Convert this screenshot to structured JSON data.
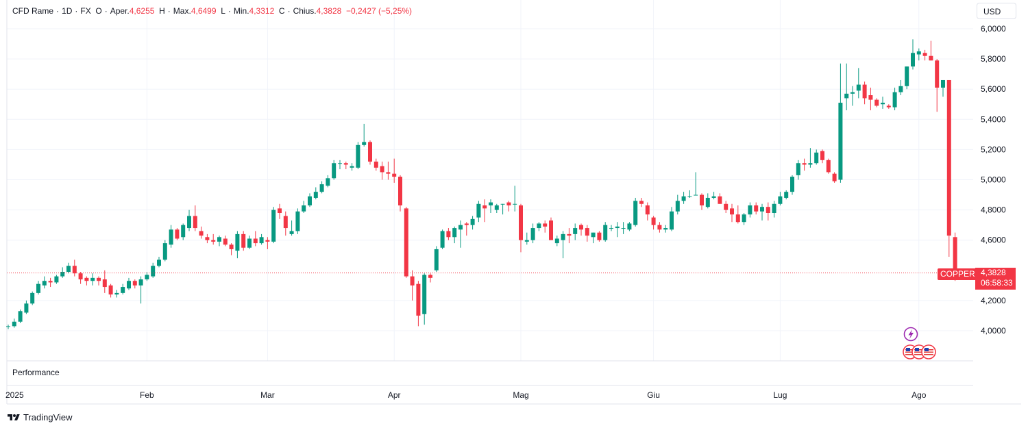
{
  "legend": {
    "symbol": "CFD Rame",
    "interval": "1D",
    "source": "FX",
    "open_label": "O",
    "open_word": "Aper.",
    "open": "4,6255",
    "high_label": "H",
    "high_word": "Max.",
    "high": "4,6499",
    "low_label": "L",
    "low_word": "Min.",
    "low": "4,3312",
    "close_label": "C",
    "close_word": "Chius.",
    "close": "4,3828",
    "change": "−0,2427 (−5,25%)"
  },
  "currency": "USD",
  "performance_label": "Performance",
  "brand": "TradingView",
  "last_price": {
    "symbol_tag": "COPPER",
    "value": "4,3828",
    "value_num": 4.3828,
    "countdown": "06:58:33"
  },
  "colors": {
    "up": "#089981",
    "down": "#f23645",
    "grid": "#f0f3fa",
    "axis_text": "#131722"
  },
  "icons": [
    "lightning-event-icon",
    "us-flag-icon",
    "us-flag-icon",
    "us-flag-icon"
  ],
  "chart_data": {
    "type": "candlestick",
    "title": "",
    "xlabel": "",
    "ylabel": "",
    "ylim": [
      3.8,
      6.05
    ],
    "y_ticks": [
      4.0,
      4.2,
      4.6,
      4.8,
      5.0,
      5.2,
      5.4,
      5.6,
      5.8,
      6.0
    ],
    "y_tick_labels": [
      "4,0000",
      "4,2000",
      "4,6000",
      "4,8000",
      "5,0000",
      "5,2000",
      "5,4000",
      "5,6000",
      "5,8000",
      "6,0000"
    ],
    "x_range": [
      0,
      153
    ],
    "x_ticks": [
      {
        "label": "2025",
        "pos": 0
      },
      {
        "label": "Feb",
        "pos": 23
      },
      {
        "label": "Mar",
        "pos": 43
      },
      {
        "label": "Apr",
        "pos": 64
      },
      {
        "label": "Mag",
        "pos": 85
      },
      {
        "label": "Giu",
        "pos": 107
      },
      {
        "label": "Lug",
        "pos": 128
      },
      {
        "label": "Ago",
        "pos": 151
      }
    ],
    "grid": true,
    "candles": [
      [
        4.03,
        4.04,
        4.01,
        4.03
      ],
      [
        4.03,
        4.08,
        4.02,
        4.06
      ],
      [
        4.06,
        4.14,
        4.05,
        4.13
      ],
      [
        4.12,
        4.2,
        4.11,
        4.18
      ],
      [
        4.18,
        4.26,
        4.17,
        4.25
      ],
      [
        4.25,
        4.33,
        4.24,
        4.31
      ],
      [
        4.3,
        4.36,
        4.28,
        4.33
      ],
      [
        4.33,
        4.35,
        4.29,
        4.32
      ],
      [
        4.32,
        4.37,
        4.31,
        4.36
      ],
      [
        4.36,
        4.42,
        4.35,
        4.39
      ],
      [
        4.39,
        4.45,
        4.38,
        4.43
      ],
      [
        4.43,
        4.47,
        4.36,
        4.38
      ],
      [
        4.38,
        4.39,
        4.31,
        4.34
      ],
      [
        4.35,
        4.36,
        4.3,
        4.33
      ],
      [
        4.33,
        4.38,
        4.3,
        4.35
      ],
      [
        4.35,
        4.36,
        4.3,
        4.33
      ],
      [
        4.34,
        4.4,
        4.25,
        4.29
      ],
      [
        4.3,
        4.31,
        4.22,
        4.24
      ],
      [
        4.24,
        4.27,
        4.22,
        4.25
      ],
      [
        4.25,
        4.31,
        4.24,
        4.29
      ],
      [
        4.28,
        4.35,
        4.27,
        4.33
      ],
      [
        4.33,
        4.34,
        4.28,
        4.3
      ],
      [
        4.3,
        4.36,
        4.18,
        4.34
      ],
      [
        4.34,
        4.39,
        4.33,
        4.37
      ],
      [
        4.36,
        4.45,
        4.35,
        4.43
      ],
      [
        4.43,
        4.49,
        4.42,
        4.47
      ],
      [
        4.47,
        4.6,
        4.46,
        4.58
      ],
      [
        4.57,
        4.7,
        4.55,
        4.67
      ],
      [
        4.67,
        4.68,
        4.6,
        4.61
      ],
      [
        4.62,
        4.71,
        4.6,
        4.7
      ],
      [
        4.68,
        4.8,
        4.66,
        4.76
      ],
      [
        4.76,
        4.83,
        4.66,
        4.68
      ],
      [
        4.66,
        4.69,
        4.61,
        4.63
      ],
      [
        4.62,
        4.64,
        4.58,
        4.6
      ],
      [
        4.6,
        4.64,
        4.57,
        4.59
      ],
      [
        4.59,
        4.63,
        4.56,
        4.62
      ],
      [
        4.61,
        4.63,
        4.56,
        4.57
      ],
      [
        4.57,
        4.58,
        4.5,
        4.54
      ],
      [
        4.53,
        4.66,
        4.48,
        4.64
      ],
      [
        4.64,
        4.66,
        4.53,
        4.55
      ],
      [
        4.55,
        4.63,
        4.54,
        4.61
      ],
      [
        4.61,
        4.66,
        4.56,
        4.58
      ],
      [
        4.58,
        4.64,
        4.57,
        4.62
      ],
      [
        4.6,
        4.62,
        4.54,
        4.59
      ],
      [
        4.59,
        4.82,
        4.58,
        4.8
      ],
      [
        4.81,
        4.84,
        4.74,
        4.78
      ],
      [
        4.76,
        4.79,
        4.63,
        4.68
      ],
      [
        4.64,
        4.73,
        4.63,
        4.66
      ],
      [
        4.66,
        4.81,
        4.64,
        4.79
      ],
      [
        4.79,
        4.86,
        4.78,
        4.83
      ],
      [
        4.83,
        4.91,
        4.82,
        4.89
      ],
      [
        4.88,
        4.95,
        4.87,
        4.92
      ],
      [
        4.92,
        4.99,
        4.91,
        4.97
      ],
      [
        4.96,
        5.03,
        4.95,
        5.01
      ],
      [
        5.01,
        5.13,
        5.0,
        5.11
      ],
      [
        5.11,
        5.13,
        5.07,
        5.11
      ],
      [
        5.11,
        5.12,
        5.07,
        5.1
      ],
      [
        5.08,
        5.11,
        5.06,
        5.09
      ],
      [
        5.08,
        5.25,
        5.07,
        5.23
      ],
      [
        5.23,
        5.37,
        5.22,
        5.25
      ],
      [
        5.25,
        5.26,
        5.1,
        5.12
      ],
      [
        5.12,
        5.14,
        5.06,
        5.08
      ],
      [
        5.09,
        5.12,
        5.0,
        5.05
      ],
      [
        5.05,
        5.12,
        5.0,
        5.04
      ],
      [
        5.04,
        5.14,
        4.98,
        5.02
      ],
      [
        5.02,
        5.03,
        4.79,
        4.83
      ],
      [
        4.81,
        4.82,
        4.35,
        4.36
      ],
      [
        4.36,
        4.4,
        4.2,
        4.3
      ],
      [
        4.31,
        4.33,
        4.03,
        4.1
      ],
      [
        4.11,
        4.38,
        4.04,
        4.37
      ],
      [
        4.37,
        4.38,
        4.32,
        4.35
      ],
      [
        4.4,
        4.56,
        4.39,
        4.54
      ],
      [
        4.55,
        4.67,
        4.54,
        4.66
      ],
      [
        4.66,
        4.68,
        4.6,
        4.62
      ],
      [
        4.62,
        4.69,
        4.58,
        4.68
      ],
      [
        4.67,
        4.73,
        4.55,
        4.7
      ],
      [
        4.71,
        4.72,
        4.63,
        4.7
      ],
      [
        4.7,
        4.76,
        4.67,
        4.74
      ],
      [
        4.75,
        4.86,
        4.72,
        4.84
      ],
      [
        4.83,
        4.87,
        4.72,
        4.81
      ],
      [
        4.83,
        4.87,
        4.78,
        4.85
      ],
      [
        4.8,
        4.84,
        4.78,
        4.83
      ],
      [
        4.84,
        4.84,
        4.77,
        4.84
      ],
      [
        4.85,
        4.86,
        4.79,
        4.83
      ],
      [
        4.84,
        4.96,
        4.79,
        4.84
      ],
      [
        4.83,
        4.84,
        4.52,
        4.6
      ],
      [
        4.59,
        4.65,
        4.57,
        4.6
      ],
      [
        4.6,
        4.71,
        4.58,
        4.68
      ],
      [
        4.68,
        4.72,
        4.66,
        4.71
      ],
      [
        4.71,
        4.73,
        4.65,
        4.69
      ],
      [
        4.73,
        4.75,
        4.6,
        4.6
      ],
      [
        4.58,
        4.63,
        4.56,
        4.61
      ],
      [
        4.6,
        4.66,
        4.48,
        4.64
      ],
      [
        4.64,
        4.68,
        4.58,
        4.63
      ],
      [
        4.64,
        4.71,
        4.6,
        4.68
      ],
      [
        4.7,
        4.71,
        4.63,
        4.67
      ],
      [
        4.68,
        4.7,
        4.59,
        4.63
      ],
      [
        4.62,
        4.65,
        4.58,
        4.65
      ],
      [
        4.65,
        4.66,
        4.59,
        4.6
      ],
      [
        4.6,
        4.72,
        4.59,
        4.7
      ],
      [
        4.68,
        4.7,
        4.66,
        4.68
      ],
      [
        4.68,
        4.72,
        4.62,
        4.69
      ],
      [
        4.68,
        4.72,
        4.64,
        4.68
      ],
      [
        4.67,
        4.72,
        4.66,
        4.71
      ],
      [
        4.7,
        4.88,
        4.69,
        4.86
      ],
      [
        4.86,
        4.88,
        4.82,
        4.84
      ],
      [
        4.83,
        4.85,
        4.73,
        4.77
      ],
      [
        4.75,
        4.76,
        4.67,
        4.7
      ],
      [
        4.7,
        4.72,
        4.65,
        4.67
      ],
      [
        4.67,
        4.7,
        4.65,
        4.68
      ],
      [
        4.67,
        4.82,
        4.66,
        4.79
      ],
      [
        4.79,
        4.9,
        4.77,
        4.86
      ],
      [
        4.86,
        4.92,
        4.84,
        4.89
      ],
      [
        4.89,
        4.93,
        4.88,
        4.89
      ],
      [
        4.9,
        5.05,
        4.9,
        4.9
      ],
      [
        4.9,
        4.91,
        4.8,
        4.83
      ],
      [
        4.82,
        4.91,
        4.81,
        4.88
      ],
      [
        4.88,
        4.92,
        4.87,
        4.89
      ],
      [
        4.89,
        4.91,
        4.84,
        4.84
      ],
      [
        4.84,
        4.86,
        4.78,
        4.8
      ],
      [
        4.81,
        4.84,
        4.72,
        4.77
      ],
      [
        4.77,
        4.83,
        4.71,
        4.72
      ],
      [
        4.72,
        4.78,
        4.7,
        4.77
      ],
      [
        4.77,
        4.85,
        4.75,
        4.83
      ],
      [
        4.83,
        4.85,
        4.77,
        4.79
      ],
      [
        4.79,
        4.84,
        4.73,
        4.82
      ],
      [
        4.82,
        4.85,
        4.73,
        4.78
      ],
      [
        4.78,
        4.86,
        4.75,
        4.84
      ],
      [
        4.84,
        4.92,
        4.83,
        4.89
      ],
      [
        4.88,
        4.93,
        4.87,
        4.92
      ],
      [
        4.92,
        5.03,
        4.9,
        5.02
      ],
      [
        5.03,
        5.13,
        5.0,
        5.11
      ],
      [
        5.11,
        5.14,
        5.06,
        5.1
      ],
      [
        5.1,
        5.21,
        5.08,
        5.11
      ],
      [
        5.11,
        5.2,
        5.1,
        5.18
      ],
      [
        5.19,
        5.2,
        5.11,
        5.13
      ],
      [
        5.13,
        5.14,
        5.04,
        5.05
      ],
      [
        5.04,
        5.05,
        4.98,
        4.99
      ],
      [
        5.0,
        5.77,
        4.98,
        5.51
      ]
    ],
    "candles_tail": [
      [
        5.54,
        5.77,
        5.46,
        5.57
      ],
      [
        5.57,
        5.62,
        5.49,
        5.58
      ],
      [
        5.59,
        5.74,
        5.54,
        5.63
      ],
      [
        5.63,
        5.65,
        5.5,
        5.54
      ],
      [
        5.56,
        5.61,
        5.46,
        5.53
      ],
      [
        5.53,
        5.54,
        5.48,
        5.49
      ],
      [
        5.5,
        5.55,
        5.47,
        5.51
      ],
      [
        5.49,
        5.5,
        5.47,
        5.48
      ],
      [
        5.48,
        5.61,
        5.46,
        5.58
      ],
      [
        5.58,
        5.66,
        5.56,
        5.62
      ],
      [
        5.62,
        5.75,
        5.6,
        5.75
      ],
      [
        5.75,
        5.93,
        5.73,
        5.84
      ],
      [
        5.83,
        5.87,
        5.79,
        5.85
      ],
      [
        5.84,
        5.86,
        5.79,
        5.82
      ],
      [
        5.82,
        5.92,
        5.79,
        5.79
      ],
      [
        5.79,
        5.8,
        5.45,
        5.61
      ],
      [
        5.61,
        5.66,
        5.55,
        5.66
      ],
      [
        5.66,
        5.66,
        4.49,
        4.63
      ],
      [
        4.62,
        4.65,
        4.33,
        4.38
      ]
    ]
  }
}
